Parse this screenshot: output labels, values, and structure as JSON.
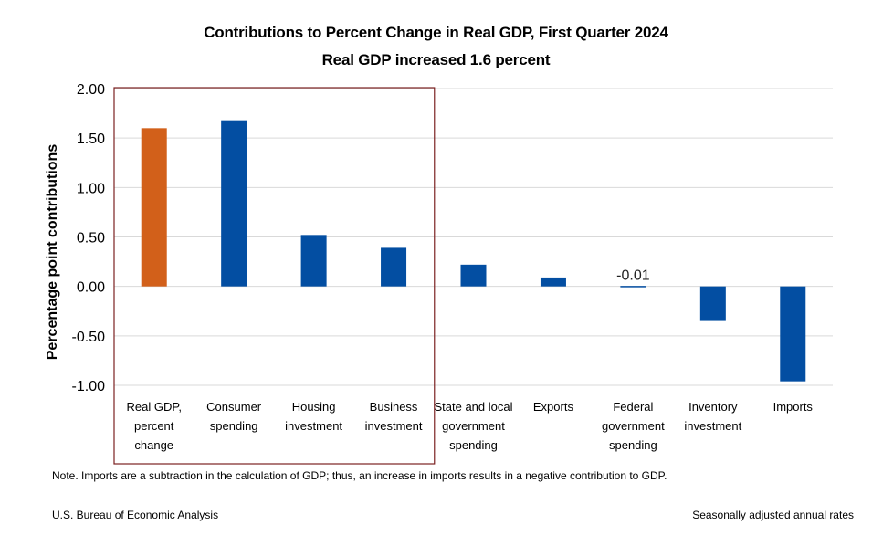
{
  "chart_data": {
    "type": "bar",
    "title": "Contributions to Percent Change in Real GDP, First Quarter 2024",
    "subtitle": "Real GDP increased 1.6 percent",
    "ylabel": "Percentage point contributions",
    "xlabel": "",
    "ylim": [
      -1.0,
      2.0
    ],
    "yticks": [
      "2.00",
      "1.50",
      "1.00",
      "0.50",
      "0.00",
      "-0.50",
      "-1.00"
    ],
    "ytick_values": [
      2.0,
      1.5,
      1.0,
      0.5,
      0.0,
      -0.5,
      -1.0
    ],
    "grid": true,
    "categories": [
      [
        "Real GDP,",
        "percent",
        "change"
      ],
      [
        "Consumer",
        "spending"
      ],
      [
        "Housing",
        "investment"
      ],
      [
        "Business",
        "investment"
      ],
      [
        "State and local",
        "government",
        "spending"
      ],
      [
        "Exports"
      ],
      [
        "Federal",
        "government",
        "spending"
      ],
      [
        "Inventory",
        "investment"
      ],
      [
        "Imports"
      ]
    ],
    "values": [
      1.6,
      1.68,
      0.52,
      0.39,
      0.22,
      0.09,
      -0.01,
      -0.35,
      -0.96
    ],
    "highlight_index": 0,
    "data_labels": [
      {
        "index": 6,
        "text": "-0.01"
      }
    ],
    "colors": {
      "highlight": "#d2601a",
      "bar": "#034ea2",
      "grid": "#d9d9d9",
      "box": "#7b2121",
      "axis_text": "#000000"
    }
  },
  "footer": {
    "note": "Note. Imports are a subtraction in the calculation of GDP; thus, an increase in imports results in a negative contribution to GDP.",
    "source": "U.S. Bureau of Economic Analysis",
    "rates": "Seasonally adjusted annual rates"
  }
}
